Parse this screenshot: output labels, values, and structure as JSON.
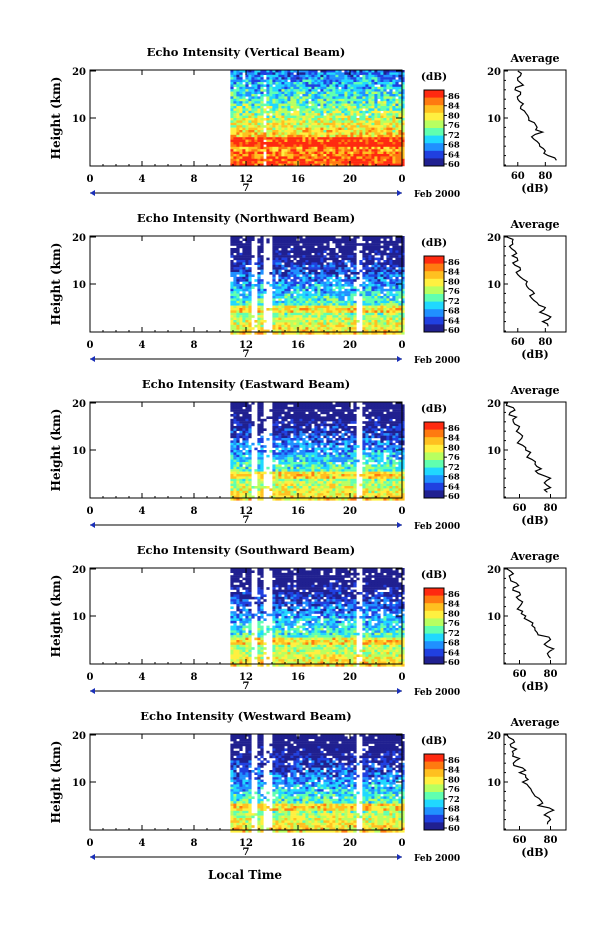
{
  "x_axis_label": "Local Time",
  "colorbar": {
    "unit": "(dB)",
    "ticks": [
      "86",
      "84",
      "80",
      "76",
      "72",
      "68",
      "64",
      "60"
    ],
    "colors": [
      "#ff2a10",
      "#ff7a10",
      "#ffc020",
      "#fff040",
      "#b8ff60",
      "#60ffb0",
      "#20d8ff",
      "#2090ff",
      "#2040e0",
      "#202090"
    ]
  },
  "profile_panel": {
    "title": "Average",
    "xlabel": "(dB)"
  },
  "chart_data": [
    {
      "type": "heatmap",
      "title": "Echo Intensity (Vertical Beam)",
      "ylabel": "Height (km)",
      "x_ticks": [
        "0",
        "4",
        "8",
        "12",
        "16",
        "20",
        "0"
      ],
      "x_range": [
        0,
        24
      ],
      "y_ticks": [
        "10",
        "20"
      ],
      "y_range": [
        0,
        20
      ],
      "date_marker": "7",
      "date_label": "Feb 2000",
      "data_start_hour": 10.8,
      "profile": {
        "x_ticks": [
          "60",
          "80"
        ],
        "x_range": [
          50,
          95
        ],
        "y_ticks": [
          "10",
          "20"
        ],
        "heights": [
          1,
          2,
          3,
          4,
          5,
          6,
          7,
          8,
          9,
          10,
          11,
          12,
          13,
          14,
          15,
          16,
          17,
          18,
          19,
          20
        ],
        "values": [
          88,
          82,
          80,
          76,
          74,
          70,
          78,
          74,
          72,
          68,
          66,
          62,
          64,
          60,
          62,
          58,
          64,
          60,
          62,
          60
        ]
      }
    },
    {
      "type": "heatmap",
      "title": "Echo Intensity (Northward Beam)",
      "ylabel": "Height (km)",
      "x_ticks": [
        "0",
        "4",
        "8",
        "12",
        "16",
        "20",
        "0"
      ],
      "x_range": [
        0,
        24
      ],
      "y_ticks": [
        "10",
        "20"
      ],
      "y_range": [
        0,
        20
      ],
      "date_marker": "7",
      "date_label": "Feb 2000",
      "data_start_hour": 10.8,
      "profile": {
        "x_ticks": [
          "60",
          "80"
        ],
        "x_range": [
          50,
          95
        ],
        "y_ticks": [
          "10",
          "20"
        ],
        "heights": [
          1,
          2,
          3,
          4,
          5,
          6,
          7,
          8,
          9,
          10,
          11,
          12,
          13,
          14,
          15,
          16,
          17,
          18,
          19,
          20
        ],
        "values": [
          82,
          78,
          84,
          76,
          80,
          74,
          70,
          72,
          68,
          66,
          64,
          60,
          62,
          58,
          60,
          56,
          58,
          54,
          56,
          52
        ]
      }
    },
    {
      "type": "heatmap",
      "title": "Echo Intensity (Eastward Beam)",
      "ylabel": "Height (km)",
      "x_ticks": [
        "0",
        "4",
        "8",
        "12",
        "16",
        "20",
        "0"
      ],
      "x_range": [
        0,
        24
      ],
      "y_ticks": [
        "10",
        "20"
      ],
      "y_range": [
        0,
        20
      ],
      "date_marker": "7",
      "date_label": "Feb 2000",
      "data_start_hour": 10.8,
      "profile": {
        "x_ticks": [
          "60",
          "80"
        ],
        "x_range": [
          50,
          90
        ],
        "y_ticks": [
          "10",
          "20"
        ],
        "heights": [
          1,
          2,
          3,
          4,
          5,
          6,
          7,
          8,
          9,
          10,
          11,
          12,
          13,
          14,
          15,
          16,
          17,
          18,
          19,
          20
        ],
        "values": [
          78,
          80,
          76,
          80,
          72,
          74,
          70,
          68,
          66,
          64,
          62,
          60,
          62,
          58,
          60,
          56,
          58,
          54,
          56,
          52
        ]
      }
    },
    {
      "type": "heatmap",
      "title": "Echo Intensity (Southward Beam)",
      "ylabel": "Height (km)",
      "x_ticks": [
        "0",
        "4",
        "8",
        "12",
        "16",
        "20",
        "0"
      ],
      "x_range": [
        0,
        24
      ],
      "y_ticks": [
        "10",
        "20"
      ],
      "y_range": [
        0,
        20
      ],
      "date_marker": "7",
      "date_label": "Feb 2000",
      "data_start_hour": 10.8,
      "profile": {
        "x_ticks": [
          "60",
          "80"
        ],
        "x_range": [
          50,
          90
        ],
        "y_ticks": [
          "10",
          "20"
        ],
        "heights": [
          1,
          2,
          3,
          4,
          5,
          6,
          7,
          8,
          9,
          10,
          11,
          12,
          13,
          14,
          15,
          16,
          17,
          18,
          19,
          20
        ],
        "values": [
          80,
          78,
          82,
          76,
          80,
          72,
          70,
          68,
          66,
          64,
          62,
          60,
          62,
          58,
          60,
          56,
          58,
          54,
          56,
          52
        ]
      }
    },
    {
      "type": "heatmap",
      "title": "Echo Intensity (Westward Beam)",
      "ylabel": "Height (km)",
      "x_ticks": [
        "0",
        "4",
        "8",
        "12",
        "16",
        "20",
        "0"
      ],
      "x_range": [
        0,
        24
      ],
      "y_ticks": [
        "10",
        "20"
      ],
      "y_range": [
        0,
        20
      ],
      "date_marker": "7",
      "date_label": "Feb 2000",
      "data_start_hour": 10.8,
      "profile": {
        "x_ticks": [
          "60",
          "80"
        ],
        "x_range": [
          50,
          90
        ],
        "y_ticks": [
          "10",
          "20"
        ],
        "heights": [
          1,
          2,
          3,
          4,
          5,
          6,
          7,
          8,
          9,
          10,
          11,
          12,
          13,
          14,
          15,
          16,
          17,
          18,
          19,
          20
        ],
        "values": [
          78,
          80,
          76,
          82,
          72,
          74,
          70,
          68,
          66,
          62,
          64,
          60,
          62,
          56,
          60,
          56,
          58,
          54,
          56,
          52
        ]
      }
    }
  ]
}
